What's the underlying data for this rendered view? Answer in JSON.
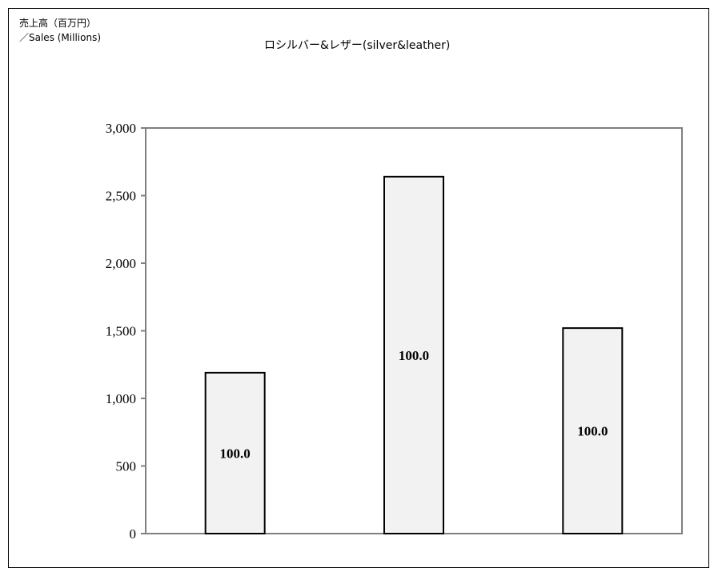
{
  "chart_data": {
    "type": "bar",
    "title": "ロシルバー&レザー(silver&leather)",
    "ylabel_line1": "売上高（百万円）",
    "ylabel_line2": "／Sales (Millions)",
    "xlabel": "",
    "categories": [
      "",
      "",
      ""
    ],
    "values": [
      1190,
      2640,
      1520
    ],
    "data_labels": [
      "100.0",
      "100.0",
      "100.0"
    ],
    "ylim": [
      0,
      3000
    ],
    "yticks": [
      "0",
      "500",
      "1,000",
      "1,500",
      "2,000",
      "2,500",
      "3,000"
    ],
    "grid": false,
    "legend": "none",
    "colors": {
      "bar_fill": "#f2f2f2",
      "bar_stroke": "#000000",
      "axis": "#808080"
    }
  }
}
